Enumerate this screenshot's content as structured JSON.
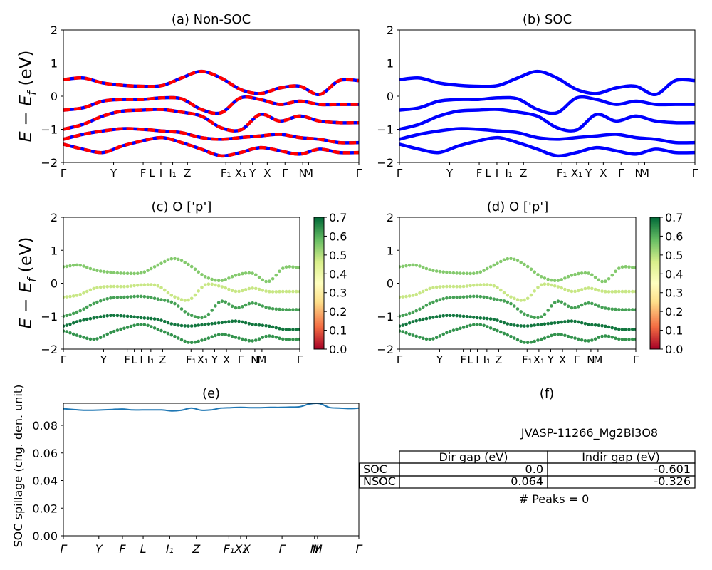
{
  "figure": {
    "ylabel_band": "E − E",
    "ylabel_band_sub": "f",
    "ylabel_band_unit": " (eV)",
    "ylabel_spillage": "SOC spillage (chg. den. unit)"
  },
  "colors": {
    "nonsoc_red": "#ff0000",
    "soc_blue": "#0000ff",
    "spillage_line": "#1f77b4",
    "colormap": [
      "#a50026",
      "#f46d43",
      "#fee08b",
      "#ffffbf",
      "#d9ef8b",
      "#66bd63",
      "#006837"
    ]
  },
  "table_f": {
    "title": "(f)",
    "material": "JVASP-11266_Mg2Bi3O8",
    "col_labels": [
      "Dir gap (eV)",
      "Indir gap (eV)"
    ],
    "rows": [
      {
        "label": "SOC",
        "dir": "0.0",
        "indir": "-0.601"
      },
      {
        "label": "NSOC",
        "dir": "0.064",
        "indir": "-0.326"
      }
    ],
    "peaks": "# Peaks = 0"
  },
  "chart_data": [
    {
      "panel": "a",
      "type": "line",
      "title": "(a) Non-SOC",
      "ylim": [
        -2,
        2
      ],
      "yticks": [
        "2",
        "1",
        "0",
        "−1",
        "−2"
      ],
      "kpath_labels": [
        "Γ",
        "Y",
        "F",
        "L",
        "I",
        "I₁",
        "Z",
        "F₁",
        "X₁",
        "Y",
        "X",
        "Γ",
        "N",
        "M",
        "Γ"
      ],
      "series": [
        {
          "values": [
            0.5,
            0.55,
            0.4,
            0.33,
            0.3,
            0.32,
            0.55,
            0.75,
            0.55,
            0.2,
            0.08,
            0.25,
            0.3,
            0.05,
            0.47,
            0.47
          ]
        },
        {
          "values": [
            -0.42,
            -0.35,
            -0.15,
            -0.1,
            -0.1,
            -0.05,
            -0.08,
            -0.4,
            -0.5,
            -0.05,
            -0.1,
            -0.25,
            -0.15,
            -0.25,
            -0.25,
            -0.25
          ]
        },
        {
          "values": [
            -1.0,
            -0.85,
            -0.6,
            -0.45,
            -0.42,
            -0.4,
            -0.48,
            -0.6,
            -0.95,
            -1.02,
            -0.55,
            -0.75,
            -0.6,
            -0.75,
            -0.8,
            -0.8
          ]
        },
        {
          "values": [
            -1.3,
            -1.15,
            -1.05,
            -0.98,
            -1.0,
            -1.05,
            -1.1,
            -1.25,
            -1.3,
            -1.25,
            -1.2,
            -1.15,
            -1.25,
            -1.3,
            -1.4,
            -1.4
          ]
        },
        {
          "values": [
            -1.45,
            -1.6,
            -1.7,
            -1.5,
            -1.35,
            -1.25,
            -1.4,
            -1.6,
            -1.8,
            -1.7,
            -1.55,
            -1.65,
            -1.75,
            -1.6,
            -1.7,
            -1.7
          ]
        }
      ]
    },
    {
      "panel": "b",
      "type": "line",
      "title": "(b) SOC",
      "ylim": [
        -2,
        2
      ],
      "yticks": [
        "2",
        "1",
        "0",
        "−1",
        "−2"
      ],
      "kpath_labels": [
        "Γ",
        "Y",
        "F",
        "L",
        "I",
        "I₁",
        "Z",
        "F₁",
        "X₁",
        "Y",
        "X",
        "Γ",
        "N",
        "M",
        "Γ"
      ],
      "series": [
        {
          "values": [
            0.5,
            0.55,
            0.4,
            0.33,
            0.3,
            0.32,
            0.55,
            0.75,
            0.55,
            0.2,
            0.08,
            0.25,
            0.3,
            0.05,
            0.47,
            0.47
          ]
        },
        {
          "values": [
            -0.42,
            -0.35,
            -0.15,
            -0.1,
            -0.1,
            -0.05,
            -0.08,
            -0.4,
            -0.5,
            -0.05,
            -0.1,
            -0.25,
            -0.15,
            -0.25,
            -0.25,
            -0.25
          ]
        },
        {
          "values": [
            -1.0,
            -0.85,
            -0.6,
            -0.45,
            -0.42,
            -0.4,
            -0.48,
            -0.6,
            -0.95,
            -1.02,
            -0.55,
            -0.75,
            -0.6,
            -0.75,
            -0.8,
            -0.8
          ]
        },
        {
          "values": [
            -1.3,
            -1.15,
            -1.05,
            -0.98,
            -1.0,
            -1.05,
            -1.1,
            -1.25,
            -1.3,
            -1.25,
            -1.2,
            -1.15,
            -1.25,
            -1.3,
            -1.4,
            -1.4
          ]
        },
        {
          "values": [
            -1.45,
            -1.6,
            -1.7,
            -1.5,
            -1.35,
            -1.25,
            -1.4,
            -1.6,
            -1.8,
            -1.7,
            -1.55,
            -1.65,
            -1.75,
            -1.6,
            -1.7,
            -1.7
          ]
        }
      ]
    },
    {
      "panel": "c",
      "type": "scatter",
      "title": "(c)  O ['p']",
      "ylim": [
        -2,
        2
      ],
      "yticks": [
        "2",
        "1",
        "0",
        "−1",
        "−2"
      ],
      "kpath_labels": [
        "Γ",
        "Y",
        "F",
        "L",
        "I",
        "I₁",
        "Z",
        "F₁",
        "X₁",
        "Y",
        "X",
        "Γ",
        "N",
        "M",
        "Γ"
      ],
      "colorbar": {
        "min": 0.0,
        "max": 0.7,
        "ticks": [
          "0.0",
          "0.1",
          "0.2",
          "0.3",
          "0.4",
          "0.5",
          "0.6",
          "0.7"
        ]
      },
      "series": [
        {
          "weight": 0.55,
          "values": [
            0.5,
            0.55,
            0.4,
            0.33,
            0.3,
            0.32,
            0.55,
            0.75,
            0.55,
            0.2,
            0.08,
            0.25,
            0.3,
            0.05,
            0.47,
            0.47
          ]
        },
        {
          "weight": 0.48,
          "values": [
            -0.42,
            -0.35,
            -0.15,
            -0.1,
            -0.1,
            -0.05,
            -0.08,
            -0.4,
            -0.5,
            -0.05,
            -0.1,
            -0.25,
            -0.15,
            -0.25,
            -0.25,
            -0.25
          ]
        },
        {
          "weight": 0.62,
          "values": [
            -1.0,
            -0.85,
            -0.6,
            -0.45,
            -0.42,
            -0.4,
            -0.48,
            -0.6,
            -0.95,
            -1.02,
            -0.55,
            -0.75,
            -0.6,
            -0.75,
            -0.8,
            -0.8
          ]
        },
        {
          "weight": 0.68,
          "values": [
            -1.3,
            -1.15,
            -1.05,
            -0.98,
            -1.0,
            -1.05,
            -1.1,
            -1.25,
            -1.3,
            -1.25,
            -1.2,
            -1.15,
            -1.25,
            -1.3,
            -1.4,
            -1.4
          ]
        },
        {
          "weight": 0.64,
          "values": [
            -1.45,
            -1.6,
            -1.7,
            -1.5,
            -1.35,
            -1.25,
            -1.4,
            -1.6,
            -1.8,
            -1.7,
            -1.55,
            -1.65,
            -1.75,
            -1.6,
            -1.7,
            -1.7
          ]
        }
      ]
    },
    {
      "panel": "d",
      "type": "scatter",
      "title": "(d) O ['p']",
      "ylim": [
        -2,
        2
      ],
      "yticks": [
        "2",
        "1",
        "0",
        "−1",
        "−2"
      ],
      "kpath_labels": [
        "Γ",
        "Y",
        "F",
        "L",
        "I",
        "I₁",
        "Z",
        "F₁",
        "X₁",
        "Y",
        "X",
        "Γ",
        "N",
        "M",
        "Γ"
      ],
      "colorbar": {
        "min": 0.0,
        "max": 0.7,
        "ticks": [
          "0.0",
          "0.1",
          "0.2",
          "0.3",
          "0.4",
          "0.5",
          "0.6",
          "0.7"
        ]
      },
      "series": [
        {
          "weight": 0.55,
          "values": [
            0.5,
            0.55,
            0.4,
            0.33,
            0.3,
            0.32,
            0.55,
            0.75,
            0.55,
            0.2,
            0.08,
            0.25,
            0.3,
            0.05,
            0.47,
            0.47
          ]
        },
        {
          "weight": 0.48,
          "values": [
            -0.42,
            -0.35,
            -0.15,
            -0.1,
            -0.1,
            -0.05,
            -0.08,
            -0.4,
            -0.5,
            -0.05,
            -0.1,
            -0.25,
            -0.15,
            -0.25,
            -0.25,
            -0.25
          ]
        },
        {
          "weight": 0.62,
          "values": [
            -1.0,
            -0.85,
            -0.6,
            -0.45,
            -0.42,
            -0.4,
            -0.48,
            -0.6,
            -0.95,
            -1.02,
            -0.55,
            -0.75,
            -0.6,
            -0.75,
            -0.8,
            -0.8
          ]
        },
        {
          "weight": 0.68,
          "values": [
            -1.3,
            -1.15,
            -1.05,
            -0.98,
            -1.0,
            -1.05,
            -1.1,
            -1.25,
            -1.3,
            -1.25,
            -1.2,
            -1.15,
            -1.25,
            -1.3,
            -1.4,
            -1.4
          ]
        },
        {
          "weight": 0.64,
          "values": [
            -1.45,
            -1.6,
            -1.7,
            -1.5,
            -1.35,
            -1.25,
            -1.4,
            -1.6,
            -1.8,
            -1.7,
            -1.55,
            -1.65,
            -1.75,
            -1.6,
            -1.7,
            -1.7
          ]
        }
      ]
    },
    {
      "panel": "e",
      "type": "line",
      "title": "(e)",
      "ylabel": "SOC spillage (chg. den. unit)",
      "ylim": [
        0.0,
        0.096
      ],
      "yticks": [
        0.0,
        0.02,
        0.04,
        0.06,
        0.08
      ],
      "kpath_labels": [
        "Γ",
        "Y",
        "F",
        "L",
        "I₁",
        "Z",
        "F₁",
        "X₁",
        "X",
        "Γ",
        "N",
        "M",
        "Γ"
      ],
      "series": [
        {
          "values": [
            0.092,
            0.0915,
            0.091,
            0.091,
            0.0912,
            0.0915,
            0.0918,
            0.0912,
            0.0912,
            0.0912,
            0.0912,
            0.0905,
            0.091,
            0.0925,
            0.091,
            0.0912,
            0.0925,
            0.0928,
            0.093,
            0.0928,
            0.0928,
            0.093,
            0.093,
            0.0932,
            0.0935,
            0.0955,
            0.0958,
            0.093,
            0.0925,
            0.0922,
            0.0925
          ]
        }
      ]
    }
  ]
}
